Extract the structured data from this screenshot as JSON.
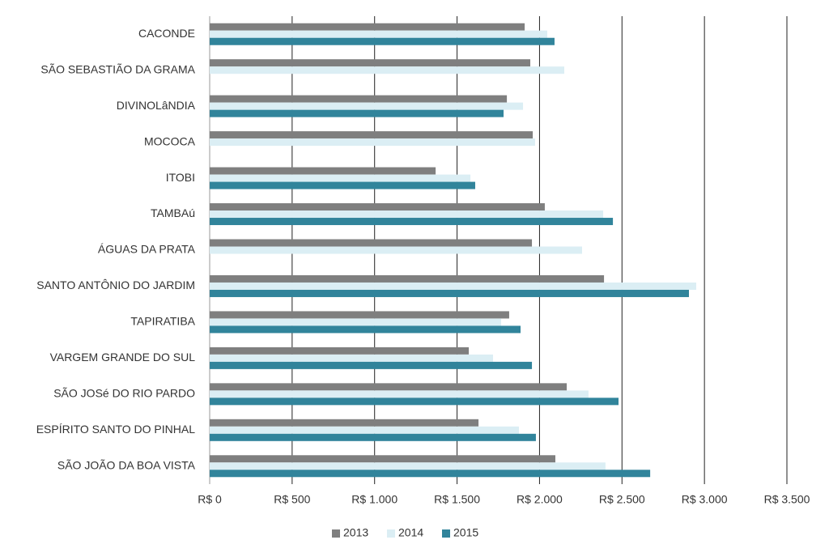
{
  "chart_data": {
    "type": "hbar",
    "categories": [
      "CACONDE",
      "SÃO SEBASTIÃO DA GRAMA",
      "DIVINOLâNDIA",
      "MOCOCA",
      "ITOBI",
      "TAMBAú",
      "ÁGUAS DA PRATA",
      "SANTO ANTÔNIO DO JARDIM",
      "TAPIRATIBA",
      "VARGEM GRANDE DO SUL",
      "SÃO JOSé DO RIO PARDO",
      "ESPÍRITO SANTO DO PINHAL",
      "SÃO JOÃO DA BOA VISTA"
    ],
    "series": [
      {
        "name": "2013",
        "color": "#7f7f7f",
        "values": [
          1910,
          1944,
          1802,
          1959,
          1370,
          2032,
          1954,
          2391,
          1816,
          1571,
          2165,
          1630,
          2096
        ]
      },
      {
        "name": "2014",
        "color": "#dbeef4",
        "values": [
          2047,
          2150,
          1900,
          1973,
          1581,
          2386,
          2258,
          2950,
          1767,
          1718,
          2297,
          1875,
          2400
        ]
      },
      {
        "name": "2015",
        "color": "#31849b",
        "values": [
          2091,
          null,
          1782,
          null,
          1610,
          2445,
          null,
          2906,
          1885,
          1954,
          2479,
          1978,
          2671
        ]
      }
    ],
    "xlim": [
      0,
      3500
    ],
    "xticks": [
      {
        "value": 0,
        "label": "R$ 0"
      },
      {
        "value": 500,
        "label": "R$ 500"
      },
      {
        "value": 1000,
        "label": "R$ 1.000"
      },
      {
        "value": 1500,
        "label": "R$ 1.500"
      },
      {
        "value": 2000,
        "label": "R$ 2.000"
      },
      {
        "value": 2500,
        "label": "R$ 2.500"
      },
      {
        "value": 3000,
        "label": "R$ 3.000"
      },
      {
        "value": 3500,
        "label": "R$ 3.500"
      }
    ],
    "grid": true,
    "legend": "bottom"
  }
}
